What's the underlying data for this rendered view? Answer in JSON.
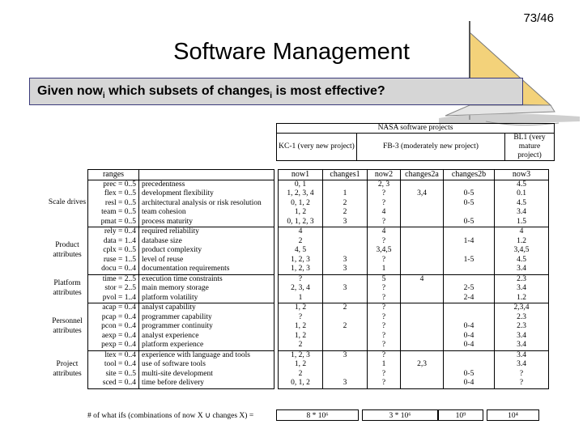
{
  "page_number": "73/46",
  "title": "Software Management",
  "question": {
    "part1": "Given now",
    "sub1": "i",
    "part2": " which subsets of changes",
    "sub2": "i",
    "part3": " is most effective?"
  },
  "projects_header": {
    "title": "NASA software projects",
    "kc1": "KC-1 (very new project)",
    "fb3": "FB-3 (moderately new project)",
    "bl1": "BL1 (very mature project)"
  },
  "columns": [
    "ranges",
    "",
    "now1",
    "changes1",
    "now2",
    "changes2a",
    "changes2b",
    "now3"
  ],
  "groups": [
    {
      "label": "Scale drives",
      "rows": [
        [
          "prec = 0..5",
          "precedentness",
          "0, 1",
          "",
          "2, 3",
          "",
          "",
          "4.5"
        ],
        [
          "flex = 0..5",
          "development flexibility",
          "1, 2, 3, 4",
          "1",
          "?",
          "3,4",
          "0-5",
          "0.1"
        ],
        [
          "resl = 0..5",
          "architectural analysis or risk resolution",
          "0, 1, 2",
          "2",
          "?",
          "",
          "0-5",
          "4.5"
        ],
        [
          "team = 0..5",
          "team cohesion",
          "1, 2",
          "2",
          "4",
          "",
          "",
          "3.4"
        ],
        [
          "pmat = 0..5",
          "process maturity",
          "0, 1, 2, 3",
          "3",
          "?",
          "",
          "0-5",
          "1.5"
        ]
      ]
    },
    {
      "label": "Product attributes",
      "rows": [
        [
          "rely = 0..4",
          "required reliability",
          "4",
          "",
          "4",
          "",
          "",
          "4"
        ],
        [
          "data = 1..4",
          "database size",
          "2",
          "",
          "?",
          "",
          "1-4",
          "1.2"
        ],
        [
          "cplx = 0..5",
          "product complexity",
          "4, 5",
          "",
          "3,4,5",
          "",
          "",
          "3,4,5"
        ],
        [
          "ruse = 1..5",
          "level of reuse",
          "1, 2, 3",
          "3",
          "?",
          "",
          "1-5",
          "4.5"
        ],
        [
          "docu = 0..4",
          "documentation requirements",
          "1, 2, 3",
          "3",
          "1",
          "",
          "",
          "3.4"
        ]
      ]
    },
    {
      "label": "Platform attributes",
      "rows": [
        [
          "time = 2..5",
          "execution time constraints",
          "?",
          "",
          "5",
          "4",
          "",
          "2.3"
        ],
        [
          "stor = 2..5",
          "main memory storage",
          "2, 3, 4",
          "3",
          "?",
          "",
          "2-5",
          "3.4"
        ],
        [
          "pvol = 1..4",
          "platform volatility",
          "1",
          "",
          "?",
          "",
          "2-4",
          "1.2"
        ]
      ]
    },
    {
      "label": "Personnel attributes",
      "rows": [
        [
          "acap = 0..4",
          "analyst capability",
          "1, 2",
          "2",
          "?",
          "",
          "",
          "2,3,4"
        ],
        [
          "pcap = 0..4",
          "programmer capability",
          "?",
          "",
          "?",
          "",
          "",
          "2.3"
        ],
        [
          "pcon = 0..4",
          "programmer continuity",
          "1, 2",
          "2",
          "?",
          "",
          "0-4",
          "2.3"
        ],
        [
          "aexp = 0..4",
          "analyst experience",
          "1, 2",
          "",
          "?",
          "",
          "0-4",
          "3.4"
        ],
        [
          "pexp = 0..4",
          "platform experience",
          "2",
          "",
          "?",
          "",
          "0-4",
          "3.4"
        ]
      ]
    },
    {
      "label": "Project attributes",
      "rows": [
        [
          "ltex = 0..4",
          "experience with language and tools",
          "1, 2, 3",
          "3",
          "?",
          "",
          "",
          "3.4"
        ],
        [
          "tool = 0..4",
          "use of software tools",
          "1, 2",
          "",
          "1",
          "2,3",
          "",
          "3.4"
        ],
        [
          "site = 0..5",
          "multi-site development",
          "2",
          "",
          "?",
          "",
          "0-5",
          "?"
        ],
        [
          "sced = 0..4",
          "time before delivery",
          "0, 1, 2",
          "3",
          "?",
          "",
          "0-4",
          "?"
        ]
      ]
    }
  ],
  "footer": {
    "label": "# of what ifs (combinations of now X ∪ changes X) =",
    "kc1": "8 * 10⁶",
    "fb3": "3 * 10⁶",
    "fb3b": "10⁹",
    "bl1": "10⁴"
  }
}
